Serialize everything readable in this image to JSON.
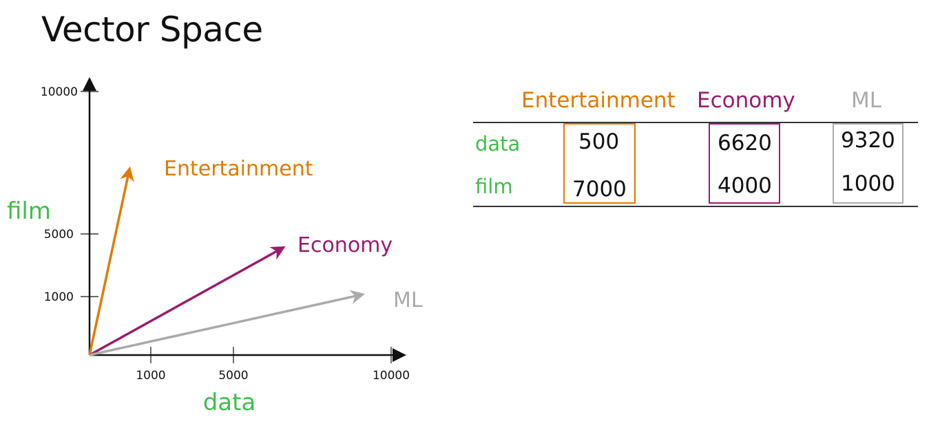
{
  "title": "Vector Space",
  "colors": {
    "entertainment": "#e07b00",
    "economy": "#9b1b6e",
    "ml": "#aaaaaa",
    "axis_label": "#3fbf4a",
    "axis": "#111111"
  },
  "diagram": {
    "x_axis_label": "data",
    "y_axis_label": "film",
    "x_ticks": [
      "1000",
      "5000",
      "10000"
    ],
    "y_ticks": [
      "1000",
      "5000",
      "10000"
    ],
    "vectors": [
      {
        "name": "Entertainment",
        "data": 500,
        "film": 7000
      },
      {
        "name": "Economy",
        "data": 6620,
        "film": 4000
      },
      {
        "name": "ML",
        "data": 9320,
        "film": 1000
      }
    ]
  },
  "table": {
    "columns": [
      "Entertainment",
      "Economy",
      "ML"
    ],
    "rows": [
      {
        "label": "data",
        "values": [
          "500",
          "6620",
          "9320"
        ]
      },
      {
        "label": "film",
        "values": [
          "7000",
          "4000",
          "1000"
        ]
      }
    ]
  }
}
